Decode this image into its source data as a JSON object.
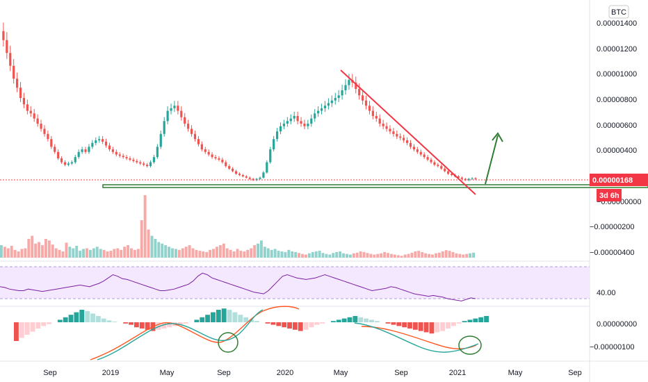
{
  "chart_data": {
    "type": "candlestick",
    "currency": "BTC",
    "price_axis": {
      "ticks": [
        "0.00001400",
        "0.00001200",
        "0.00001000",
        "0.00000800",
        "0.00000600",
        "0.00000400",
        "0.00000168",
        "−0.00000200",
        "−0.00000400"
      ],
      "hidden_tick": "−0.00000000",
      "current_price": "0.00000168",
      "countdown": "3d 6h"
    },
    "time_axis": [
      "Sep",
      "2019",
      "May",
      "Sep",
      "2020",
      "May",
      "Sep",
      "2021",
      "May",
      "Sep"
    ],
    "rsi": {
      "tick": "40.00",
      "levels": [
        70,
        30
      ]
    },
    "macd": {
      "ticks": [
        "0.00000000",
        "−0.00000100"
      ]
    },
    "price_closes": [
      1320,
      1250,
      1150,
      1050,
      950,
      880,
      800,
      750,
      700,
      680,
      640,
      600,
      560,
      520,
      480,
      420,
      380,
      330,
      300,
      280,
      290,
      300,
      340,
      380,
      400,
      380,
      420,
      450,
      470,
      480,
      460,
      430,
      400,
      380,
      360,
      350,
      340,
      330,
      320,
      310,
      300,
      290,
      280,
      270,
      300,
      340,
      420,
      520,
      620,
      700,
      720,
      740,
      700,
      650,
      600,
      560,
      520,
      480,
      440,
      400,
      380,
      360,
      340,
      330,
      320,
      300,
      270,
      250,
      230,
      210,
      200,
      190,
      180,
      170,
      160,
      170,
      180,
      220,
      300,
      400,
      480,
      540,
      580,
      600,
      620,
      640,
      660,
      620,
      600,
      580,
      600,
      640,
      680,
      700,
      720,
      740,
      760,
      780,
      800,
      820,
      860,
      900,
      940,
      920,
      870,
      820,
      780,
      740,
      700,
      660,
      640,
      600,
      580,
      560,
      540,
      520,
      500,
      490,
      470,
      450,
      420,
      400,
      380,
      360,
      340,
      320,
      300,
      280,
      270,
      250,
      230,
      210,
      200,
      190,
      180,
      170,
      160,
      170,
      175,
      168
    ],
    "volume": [
      40,
      35,
      30,
      38,
      25,
      20,
      28,
      30,
      60,
      70,
      45,
      50,
      40,
      60,
      55,
      42,
      30,
      25,
      20,
      48,
      35,
      30,
      38,
      22,
      28,
      30,
      25,
      30,
      35,
      28,
      25,
      20,
      22,
      28,
      30,
      25,
      35,
      40,
      30,
      25,
      28,
      120,
      200,
      90,
      70,
      60,
      50,
      45,
      40,
      35,
      30,
      28,
      25,
      30,
      35,
      40,
      30,
      25,
      22,
      20,
      18,
      25,
      28,
      35,
      40,
      45,
      30,
      25,
      20,
      28,
      22,
      20,
      25,
      30,
      40,
      45,
      55,
      35,
      30,
      25,
      28,
      22,
      20,
      18,
      25,
      20,
      18,
      15,
      12,
      10,
      14,
      18,
      20,
      22,
      15,
      12,
      10,
      15,
      18,
      20,
      14,
      12,
      10,
      14,
      16,
      20,
      18,
      15,
      12,
      10,
      12,
      14,
      18,
      15,
      12,
      10,
      8,
      6,
      10,
      12,
      16,
      20,
      22,
      18,
      14,
      12,
      10,
      14,
      16,
      20,
      24,
      22,
      18,
      14,
      12,
      10,
      12,
      14,
      16
    ],
    "rsi_values": [
      45,
      44,
      42,
      41,
      40,
      40,
      42,
      41,
      40,
      39,
      40,
      41,
      42,
      43,
      44,
      45,
      46,
      47,
      46,
      45,
      47,
      49,
      52,
      56,
      60,
      58,
      55,
      54,
      52,
      50,
      48,
      46,
      44,
      42,
      40,
      40,
      41,
      42,
      44,
      46,
      48,
      52,
      58,
      62,
      60,
      56,
      54,
      52,
      50,
      48,
      46,
      44,
      42,
      40,
      38,
      37,
      36,
      40,
      46,
      52,
      58,
      60,
      58,
      56,
      55,
      54,
      55,
      56,
      58,
      60,
      58,
      56,
      54,
      52,
      50,
      48,
      46,
      44,
      42,
      40,
      41,
      42,
      43,
      45,
      44,
      42,
      40,
      38,
      36,
      35,
      34,
      33,
      34,
      33,
      32,
      30,
      29,
      28,
      27,
      29,
      31,
      30
    ],
    "macd_histogram": [
      -30,
      -25,
      -20,
      -15,
      -10,
      -6,
      -3,
      0,
      4,
      8,
      12,
      16,
      20,
      18,
      14,
      10,
      6,
      3,
      1,
      0,
      -2,
      -4,
      -8,
      -10,
      -12,
      -14,
      -12,
      -10,
      -8,
      -6,
      -4,
      -2,
      0,
      4,
      8,
      12,
      16,
      20,
      22,
      20,
      16,
      12,
      8,
      4,
      2,
      0,
      -2,
      -4,
      -6,
      -8,
      -10,
      -12,
      -14,
      -12,
      -8,
      -4,
      -2,
      0,
      2,
      4,
      6,
      8,
      10,
      8,
      6,
      4,
      2,
      0,
      -2,
      -4,
      -6,
      -8,
      -10,
      -12,
      -14,
      -16,
      -18,
      -16,
      -14,
      -10,
      -6,
      -2,
      2,
      4,
      6,
      8,
      10
    ],
    "annotations": {
      "support_line": true,
      "downtrend_line": true,
      "breakout_arrow": true,
      "circles": 2
    }
  }
}
